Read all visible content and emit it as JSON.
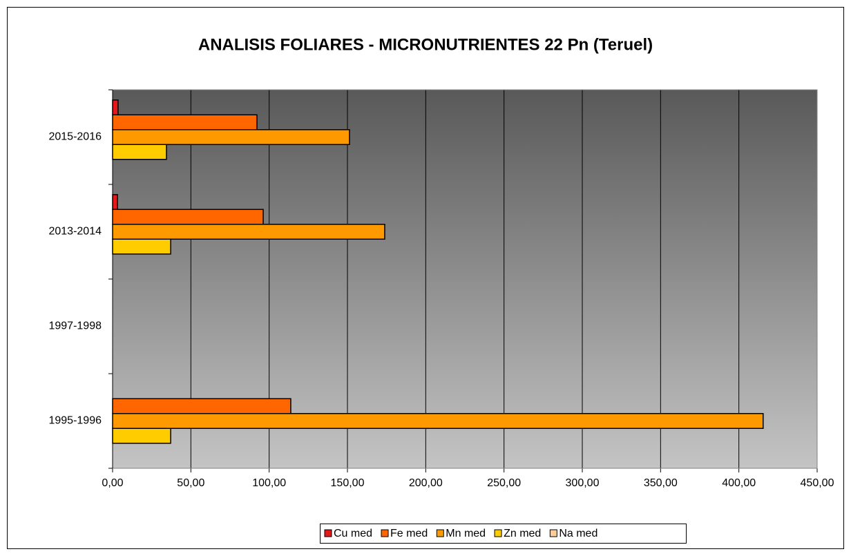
{
  "chart_data": {
    "type": "barh",
    "title": "ANALISIS FOLIARES - MICRONUTRIENTES 22 Pn (Teruel)",
    "categories": [
      "1995-1996",
      "1997-1998",
      "2013-2014",
      "2015-2016"
    ],
    "series": [
      {
        "name": "Cu med",
        "color": "#e31a1c",
        "values": [
          null,
          null,
          3.1,
          3.5
        ]
      },
      {
        "name": "Fe med",
        "color": "#ff6600",
        "values": [
          113.8,
          null,
          96.2,
          92.2
        ]
      },
      {
        "name": "Mn med",
        "color": "#ff9900",
        "values": [
          415.5,
          null,
          173.8,
          151.3
        ]
      },
      {
        "name": "Zn med",
        "color": "#ffcc00",
        "values": [
          37.1,
          null,
          37.1,
          34.4
        ]
      },
      {
        "name": "Na med",
        "color": "#ffcc99",
        "values": [
          null,
          null,
          null,
          null
        ]
      }
    ],
    "xlim": [
      0,
      450
    ],
    "xticks": [
      {
        "value": 0,
        "label": "0,00"
      },
      {
        "value": 50,
        "label": "50,00"
      },
      {
        "value": 100,
        "label": "100,00"
      },
      {
        "value": 150,
        "label": "150,00"
      },
      {
        "value": 200,
        "label": "200,00"
      },
      {
        "value": 250,
        "label": "250,00"
      },
      {
        "value": 300,
        "label": "300,00"
      },
      {
        "value": 350,
        "label": "350,00"
      },
      {
        "value": 400,
        "label": "400,00"
      },
      {
        "value": 450,
        "label": "450,00"
      }
    ],
    "grid": true,
    "legend": "bottom"
  }
}
